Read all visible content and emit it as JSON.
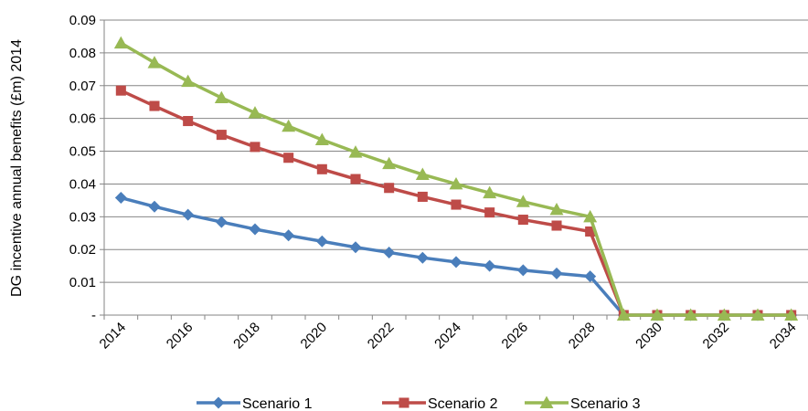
{
  "chart_data": {
    "type": "line",
    "title": "",
    "xlabel": "",
    "ylabel": "DG incentive annual benefits (£m) 2014",
    "x": [
      "2014",
      "2015",
      "2016",
      "2017",
      "2018",
      "2019",
      "2020",
      "2021",
      "2022",
      "2023",
      "2024",
      "2025",
      "2026",
      "2027",
      "2028",
      "2029",
      "2030",
      "2031",
      "2032",
      "2033",
      "2034"
    ],
    "x_tick_labels": [
      "2014",
      "2016",
      "2018",
      "2020",
      "2022",
      "2024",
      "2026",
      "2028",
      "2030",
      "2032",
      "2034"
    ],
    "ylim": [
      0,
      0.09
    ],
    "y_ticks": [
      0,
      0.01,
      0.02,
      0.03,
      0.04,
      0.05,
      0.06,
      0.07,
      0.08,
      0.09
    ],
    "y_tick_labels": [
      "-",
      "0.01",
      "0.02",
      "0.03",
      "0.04",
      "0.05",
      "0.06",
      "0.07",
      "0.08",
      "0.09"
    ],
    "grid": "horizontal",
    "legend_position": "bottom",
    "series": [
      {
        "name": "Scenario 1",
        "color": "#4A7EBB",
        "marker": "diamond",
        "values": [
          0.0358,
          0.0331,
          0.0306,
          0.0284,
          0.0262,
          0.0243,
          0.0225,
          0.0207,
          0.0191,
          0.0175,
          0.0162,
          0.015,
          0.0137,
          0.0127,
          0.0118,
          0,
          0,
          0,
          0,
          0,
          0
        ]
      },
      {
        "name": "Scenario 2",
        "color": "#BE4B48",
        "marker": "square",
        "values": [
          0.0685,
          0.0638,
          0.0592,
          0.055,
          0.0513,
          0.048,
          0.0445,
          0.0415,
          0.0388,
          0.0361,
          0.0337,
          0.0313,
          0.0291,
          0.0273,
          0.0255,
          0,
          0,
          0,
          0,
          0,
          0
        ]
      },
      {
        "name": "Scenario 3",
        "color": "#98B954",
        "marker": "triangle",
        "values": [
          0.083,
          0.077,
          0.0713,
          0.0663,
          0.0617,
          0.0576,
          0.0535,
          0.0497,
          0.0462,
          0.0429,
          0.04,
          0.0373,
          0.0346,
          0.0322,
          0.03,
          0,
          0,
          0,
          0,
          0,
          0
        ]
      }
    ]
  }
}
